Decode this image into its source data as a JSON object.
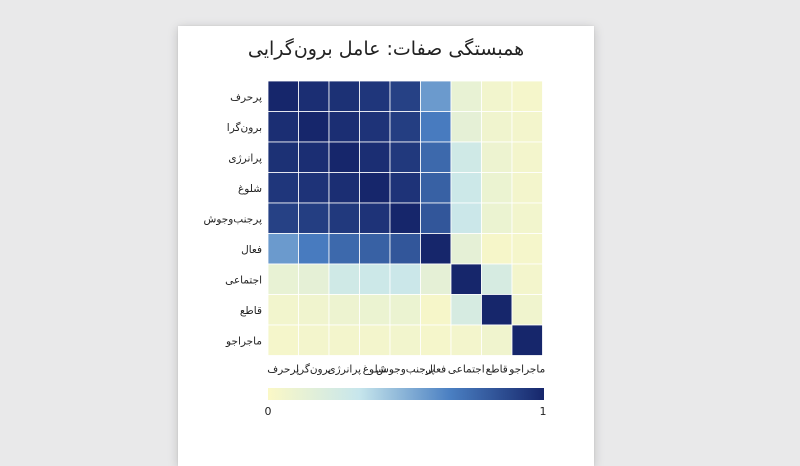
{
  "chart_data": {
    "type": "heatmap",
    "title": "همبستگی صفات: عامل برون‌گرایی",
    "row_labels": [
      "پرحرف",
      "برون‌گرا",
      "پرانرژی",
      "شلوغ",
      "پرجنب‌وجوش",
      "فعال",
      "اجتماعی",
      "قاطع",
      "ماجراجو"
    ],
    "column_labels": [
      "پرحرف",
      "برون‌گرا",
      "پرانرژی",
      "شلوغ",
      "پرجنب‌وجوش",
      "فعال",
      "اجتماعی",
      "قاطع",
      "ماجراجو"
    ],
    "values": [
      [
        1.0,
        0.97,
        0.96,
        0.94,
        0.9,
        0.58,
        0.12,
        0.06,
        0.04
      ],
      [
        0.97,
        1.0,
        0.97,
        0.95,
        0.91,
        0.68,
        0.14,
        0.07,
        0.05
      ],
      [
        0.96,
        0.97,
        1.0,
        0.97,
        0.93,
        0.75,
        0.28,
        0.09,
        0.05
      ],
      [
        0.94,
        0.95,
        0.97,
        1.0,
        0.95,
        0.78,
        0.3,
        0.1,
        0.05
      ],
      [
        0.9,
        0.91,
        0.93,
        0.95,
        1.0,
        0.82,
        0.31,
        0.1,
        0.06
      ],
      [
        0.58,
        0.68,
        0.75,
        0.78,
        0.82,
        1.0,
        0.14,
        0.03,
        0.04
      ],
      [
        0.12,
        0.14,
        0.28,
        0.3,
        0.31,
        0.14,
        1.0,
        0.24,
        0.05
      ],
      [
        0.06,
        0.07,
        0.09,
        0.1,
        0.1,
        0.03,
        0.24,
        1.0,
        0.07
      ],
      [
        0.04,
        0.05,
        0.05,
        0.05,
        0.06,
        0.04,
        0.05,
        0.07,
        1.0
      ]
    ],
    "colorbar": {
      "min": 0,
      "max": 1,
      "min_label": "0",
      "max_label": "1"
    },
    "colors": [
      "#fbf8c6",
      "#c7e6ec",
      "#4a7fc2",
      "#16266b"
    ],
    "grid": true
  }
}
